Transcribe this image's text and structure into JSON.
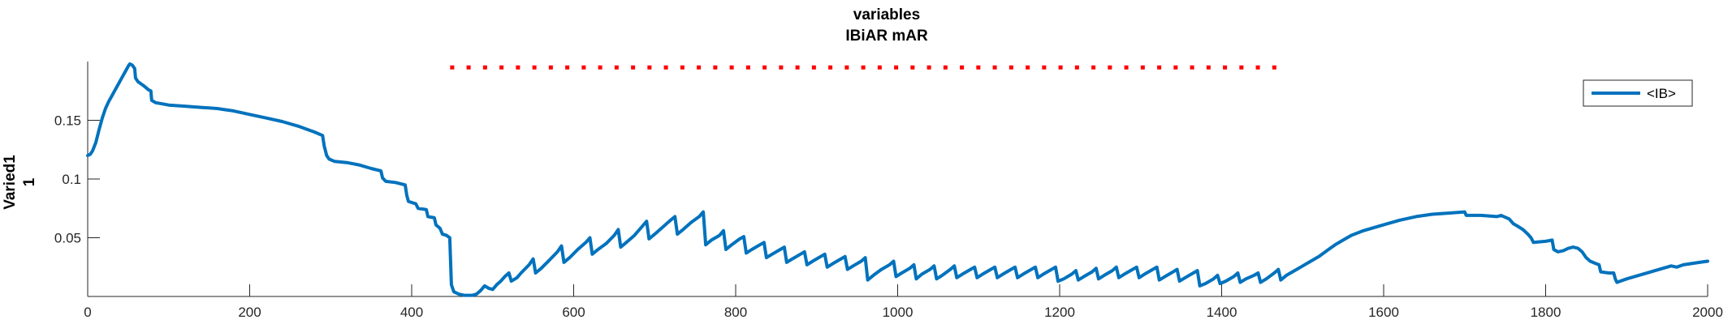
{
  "chart_data": {
    "type": "line",
    "title_lines": [
      "variables",
      "IBiAR mAR"
    ],
    "xlabel": "",
    "ylabel_lines": [
      "Varied1",
      "1"
    ],
    "xlim": [
      0,
      2000
    ],
    "ylim": [
      0,
      0.2
    ],
    "x_ticks": [
      0,
      200,
      400,
      600,
      800,
      1000,
      1200,
      1400,
      1600,
      1800,
      2000
    ],
    "x_tick_labels": [
      "0",
      "200",
      "400",
      "600",
      "800",
      "1000",
      "1200",
      "1400",
      "1600",
      "1800",
      "2000"
    ],
    "y_ticks": [
      0.05,
      0.1,
      0.15
    ],
    "y_tick_labels": [
      "0.05",
      "0.1",
      "0.15"
    ],
    "grid": false,
    "legend_position": "top-right",
    "series": [
      {
        "name": "<IB>",
        "color": "#0072BD",
        "points": [
          [
            0,
            0.12
          ],
          [
            3,
            0.121
          ],
          [
            6,
            0.124
          ],
          [
            10,
            0.131
          ],
          [
            14,
            0.142
          ],
          [
            18,
            0.152
          ],
          [
            22,
            0.16
          ],
          [
            26,
            0.166
          ],
          [
            30,
            0.171
          ],
          [
            34,
            0.176
          ],
          [
            38,
            0.181
          ],
          [
            42,
            0.186
          ],
          [
            46,
            0.191
          ],
          [
            50,
            0.196
          ],
          [
            52,
            0.198
          ],
          [
            55,
            0.197
          ],
          [
            58,
            0.194
          ],
          [
            59,
            0.186
          ],
          [
            62,
            0.183
          ],
          [
            66,
            0.181
          ],
          [
            70,
            0.179
          ],
          [
            75,
            0.176
          ],
          [
            78,
            0.175
          ],
          [
            79,
            0.167
          ],
          [
            84,
            0.165
          ],
          [
            92,
            0.164
          ],
          [
            100,
            0.163
          ],
          [
            120,
            0.162
          ],
          [
            140,
            0.161
          ],
          [
            160,
            0.16
          ],
          [
            170,
            0.159
          ],
          [
            180,
            0.158
          ],
          [
            200,
            0.155
          ],
          [
            220,
            0.152
          ],
          [
            240,
            0.149
          ],
          [
            260,
            0.145
          ],
          [
            280,
            0.14
          ],
          [
            290,
            0.137
          ],
          [
            292,
            0.128
          ],
          [
            295,
            0.12
          ],
          [
            298,
            0.117
          ],
          [
            305,
            0.115
          ],
          [
            320,
            0.114
          ],
          [
            335,
            0.112
          ],
          [
            350,
            0.109
          ],
          [
            362,
            0.107
          ],
          [
            364,
            0.101
          ],
          [
            368,
            0.098
          ],
          [
            380,
            0.097
          ],
          [
            392,
            0.095
          ],
          [
            394,
            0.086
          ],
          [
            396,
            0.081
          ],
          [
            400,
            0.08
          ],
          [
            405,
            0.079
          ],
          [
            408,
            0.075
          ],
          [
            418,
            0.074
          ],
          [
            420,
            0.068
          ],
          [
            428,
            0.067
          ],
          [
            430,
            0.061
          ],
          [
            435,
            0.058
          ],
          [
            438,
            0.053
          ],
          [
            443,
            0.052
          ],
          [
            447,
            0.05
          ],
          [
            448,
            0.03
          ],
          [
            449,
            0.01
          ],
          [
            452,
            0.004
          ],
          [
            458,
            0.002
          ],
          [
            465,
            0.001
          ],
          [
            475,
            0.001
          ],
          [
            480,
            0.002
          ],
          [
            485,
            0.005
          ],
          [
            490,
            0.009
          ],
          [
            495,
            0.007
          ],
          [
            500,
            0.006
          ],
          [
            505,
            0.01
          ],
          [
            510,
            0.013
          ],
          [
            515,
            0.017
          ],
          [
            520,
            0.02
          ],
          [
            523,
            0.013
          ],
          [
            530,
            0.016
          ],
          [
            535,
            0.02
          ],
          [
            545,
            0.027
          ],
          [
            550,
            0.032
          ],
          [
            553,
            0.02
          ],
          [
            560,
            0.024
          ],
          [
            570,
            0.031
          ],
          [
            580,
            0.038
          ],
          [
            585,
            0.043
          ],
          [
            588,
            0.029
          ],
          [
            595,
            0.033
          ],
          [
            605,
            0.04
          ],
          [
            615,
            0.046
          ],
          [
            620,
            0.05
          ],
          [
            623,
            0.036
          ],
          [
            630,
            0.04
          ],
          [
            640,
            0.045
          ],
          [
            650,
            0.052
          ],
          [
            655,
            0.057
          ],
          [
            658,
            0.042
          ],
          [
            665,
            0.046
          ],
          [
            675,
            0.052
          ],
          [
            685,
            0.06
          ],
          [
            690,
            0.064
          ],
          [
            693,
            0.049
          ],
          [
            700,
            0.053
          ],
          [
            710,
            0.059
          ],
          [
            718,
            0.064
          ],
          [
            725,
            0.068
          ],
          [
            728,
            0.053
          ],
          [
            735,
            0.057
          ],
          [
            745,
            0.063
          ],
          [
            755,
            0.068
          ],
          [
            760,
            0.072
          ],
          [
            763,
            0.044
          ],
          [
            770,
            0.048
          ],
          [
            780,
            0.052
          ],
          [
            785,
            0.056
          ],
          [
            788,
            0.04
          ],
          [
            795,
            0.044
          ],
          [
            805,
            0.049
          ],
          [
            810,
            0.051
          ],
          [
            813,
            0.037
          ],
          [
            820,
            0.04
          ],
          [
            830,
            0.044
          ],
          [
            835,
            0.046
          ],
          [
            838,
            0.033
          ],
          [
            845,
            0.036
          ],
          [
            855,
            0.04
          ],
          [
            860,
            0.042
          ],
          [
            863,
            0.029
          ],
          [
            870,
            0.032
          ],
          [
            880,
            0.036
          ],
          [
            885,
            0.038
          ],
          [
            888,
            0.027
          ],
          [
            895,
            0.03
          ],
          [
            905,
            0.034
          ],
          [
            910,
            0.036
          ],
          [
            913,
            0.025
          ],
          [
            920,
            0.028
          ],
          [
            930,
            0.032
          ],
          [
            935,
            0.034
          ],
          [
            938,
            0.023
          ],
          [
            945,
            0.026
          ],
          [
            955,
            0.03
          ],
          [
            960,
            0.033
          ],
          [
            963,
            0.014
          ],
          [
            970,
            0.018
          ],
          [
            980,
            0.023
          ],
          [
            990,
            0.027
          ],
          [
            995,
            0.03
          ],
          [
            998,
            0.017
          ],
          [
            1005,
            0.02
          ],
          [
            1015,
            0.024
          ],
          [
            1020,
            0.027
          ],
          [
            1023,
            0.015
          ],
          [
            1030,
            0.019
          ],
          [
            1040,
            0.023
          ],
          [
            1045,
            0.026
          ],
          [
            1048,
            0.015
          ],
          [
            1055,
            0.018
          ],
          [
            1065,
            0.023
          ],
          [
            1070,
            0.026
          ],
          [
            1073,
            0.016
          ],
          [
            1080,
            0.019
          ],
          [
            1090,
            0.023
          ],
          [
            1095,
            0.025
          ],
          [
            1098,
            0.016
          ],
          [
            1105,
            0.019
          ],
          [
            1115,
            0.023
          ],
          [
            1120,
            0.025
          ],
          [
            1123,
            0.016
          ],
          [
            1130,
            0.019
          ],
          [
            1140,
            0.023
          ],
          [
            1145,
            0.025
          ],
          [
            1148,
            0.016
          ],
          [
            1155,
            0.019
          ],
          [
            1165,
            0.023
          ],
          [
            1170,
            0.025
          ],
          [
            1173,
            0.016
          ],
          [
            1180,
            0.019
          ],
          [
            1190,
            0.023
          ],
          [
            1195,
            0.025
          ],
          [
            1198,
            0.013
          ],
          [
            1205,
            0.015
          ],
          [
            1215,
            0.019
          ],
          [
            1220,
            0.022
          ],
          [
            1223,
            0.014
          ],
          [
            1230,
            0.017
          ],
          [
            1240,
            0.021
          ],
          [
            1245,
            0.024
          ],
          [
            1248,
            0.015
          ],
          [
            1255,
            0.018
          ],
          [
            1265,
            0.022
          ],
          [
            1270,
            0.025
          ],
          [
            1273,
            0.016
          ],
          [
            1280,
            0.019
          ],
          [
            1290,
            0.023
          ],
          [
            1295,
            0.025
          ],
          [
            1298,
            0.016
          ],
          [
            1305,
            0.019
          ],
          [
            1315,
            0.023
          ],
          [
            1320,
            0.025
          ],
          [
            1323,
            0.014
          ],
          [
            1330,
            0.017
          ],
          [
            1340,
            0.021
          ],
          [
            1345,
            0.023
          ],
          [
            1348,
            0.013
          ],
          [
            1355,
            0.016
          ],
          [
            1365,
            0.02
          ],
          [
            1370,
            0.022
          ],
          [
            1373,
            0.009
          ],
          [
            1380,
            0.011
          ],
          [
            1390,
            0.015
          ],
          [
            1395,
            0.018
          ],
          [
            1398,
            0.011
          ],
          [
            1405,
            0.013
          ],
          [
            1415,
            0.017
          ],
          [
            1420,
            0.02
          ],
          [
            1423,
            0.012
          ],
          [
            1430,
            0.015
          ],
          [
            1440,
            0.018
          ],
          [
            1445,
            0.02
          ],
          [
            1448,
            0.012
          ],
          [
            1455,
            0.015
          ],
          [
            1465,
            0.02
          ],
          [
            1470,
            0.023
          ],
          [
            1473,
            0.014
          ],
          [
            1480,
            0.018
          ],
          [
            1490,
            0.022
          ],
          [
            1500,
            0.026
          ],
          [
            1510,
            0.03
          ],
          [
            1520,
            0.034
          ],
          [
            1530,
            0.039
          ],
          [
            1540,
            0.044
          ],
          [
            1550,
            0.048
          ],
          [
            1560,
            0.052
          ],
          [
            1575,
            0.056
          ],
          [
            1590,
            0.059
          ],
          [
            1605,
            0.062
          ],
          [
            1620,
            0.065
          ],
          [
            1640,
            0.068
          ],
          [
            1660,
            0.07
          ],
          [
            1680,
            0.071
          ],
          [
            1700,
            0.072
          ],
          [
            1702,
            0.069
          ],
          [
            1720,
            0.069
          ],
          [
            1740,
            0.068
          ],
          [
            1745,
            0.069
          ],
          [
            1755,
            0.066
          ],
          [
            1760,
            0.062
          ],
          [
            1765,
            0.06
          ],
          [
            1772,
            0.057
          ],
          [
            1778,
            0.053
          ],
          [
            1782,
            0.05
          ],
          [
            1785,
            0.046
          ],
          [
            1800,
            0.047
          ],
          [
            1808,
            0.048
          ],
          [
            1810,
            0.04
          ],
          [
            1815,
            0.038
          ],
          [
            1822,
            0.039
          ],
          [
            1828,
            0.041
          ],
          [
            1834,
            0.042
          ],
          [
            1840,
            0.041
          ],
          [
            1845,
            0.038
          ],
          [
            1850,
            0.033
          ],
          [
            1855,
            0.03
          ],
          [
            1862,
            0.028
          ],
          [
            1866,
            0.027
          ],
          [
            1868,
            0.021
          ],
          [
            1878,
            0.02
          ],
          [
            1884,
            0.02
          ],
          [
            1886,
            0.015
          ],
          [
            1888,
            0.012
          ],
          [
            1892,
            0.013
          ],
          [
            1900,
            0.015
          ],
          [
            1915,
            0.018
          ],
          [
            1930,
            0.021
          ],
          [
            1945,
            0.024
          ],
          [
            1955,
            0.026
          ],
          [
            1962,
            0.025
          ],
          [
            1970,
            0.027
          ],
          [
            1980,
            0.028
          ],
          [
            1990,
            0.029
          ],
          [
            2000,
            0.03
          ]
        ]
      },
      {
        "name": "",
        "color": "#FF0000",
        "style": "dotted",
        "y": 0.195,
        "x_start": 450,
        "x_end": 1485,
        "x_step": 20.3
      }
    ]
  }
}
